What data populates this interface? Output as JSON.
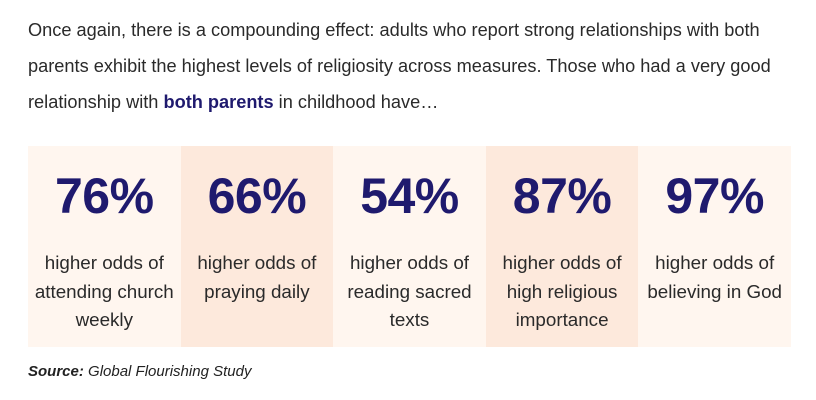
{
  "intro": {
    "text_before": "Once again, there is a compounding effect: adults who report strong relationships with both parents exhibit the highest levels of religiosity across measures. Those who had a very good relationship with ",
    "emphasis": "both parents",
    "text_after": " in childhood have…"
  },
  "stats": [
    {
      "value": "76%",
      "label": "higher odds of attending church weekly"
    },
    {
      "value": "66%",
      "label": "higher odds of praying daily"
    },
    {
      "value": "54%",
      "label": "higher odds of reading sacred texts"
    },
    {
      "value": "87%",
      "label": "higher odds of high religious importance"
    },
    {
      "value": "97%",
      "label": "higher odds of believing in God"
    }
  ],
  "source": {
    "label": "Source:",
    "text": " Global Flourishing Study"
  },
  "colors": {
    "accent": "#1f1a6e",
    "card_light": "#fff6ef",
    "card_dark": "#fde9dc"
  }
}
